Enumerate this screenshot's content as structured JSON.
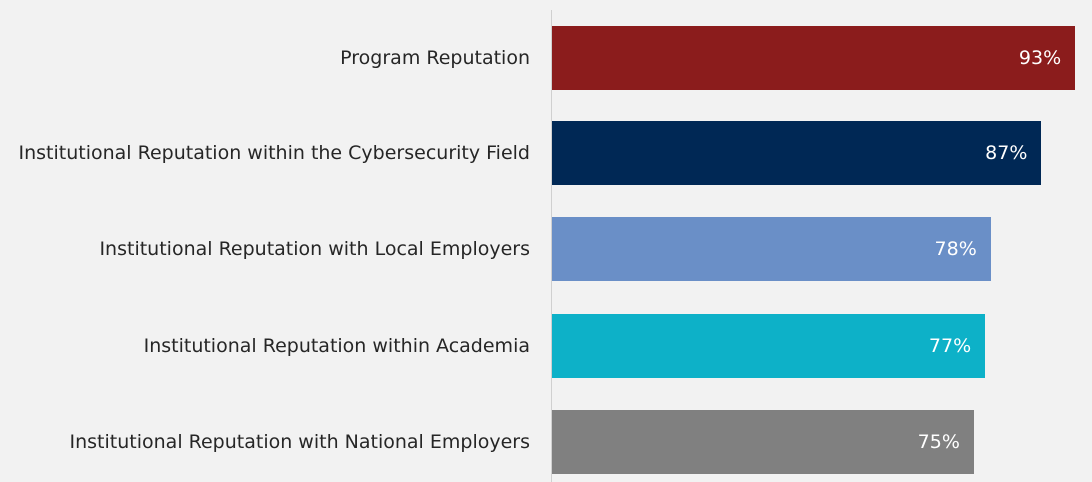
{
  "chart_data": {
    "type": "bar",
    "orientation": "horizontal",
    "categories": [
      "Program Reputation",
      "Institutional Reputation within the Cybersecurity Field",
      "Institutional Reputation with Local Employers",
      "Institutional Reputation within Academia",
      "Institutional Reputation with National Employers"
    ],
    "values": [
      93,
      87,
      78,
      77,
      75
    ],
    "value_labels": [
      "93%",
      "87%",
      "78%",
      "77%",
      "75%"
    ],
    "colors": [
      "#8b1c1c",
      "#002855",
      "#6a8fc7",
      "#0db1c8",
      "#808080"
    ],
    "xlim": [
      0,
      96
    ]
  }
}
